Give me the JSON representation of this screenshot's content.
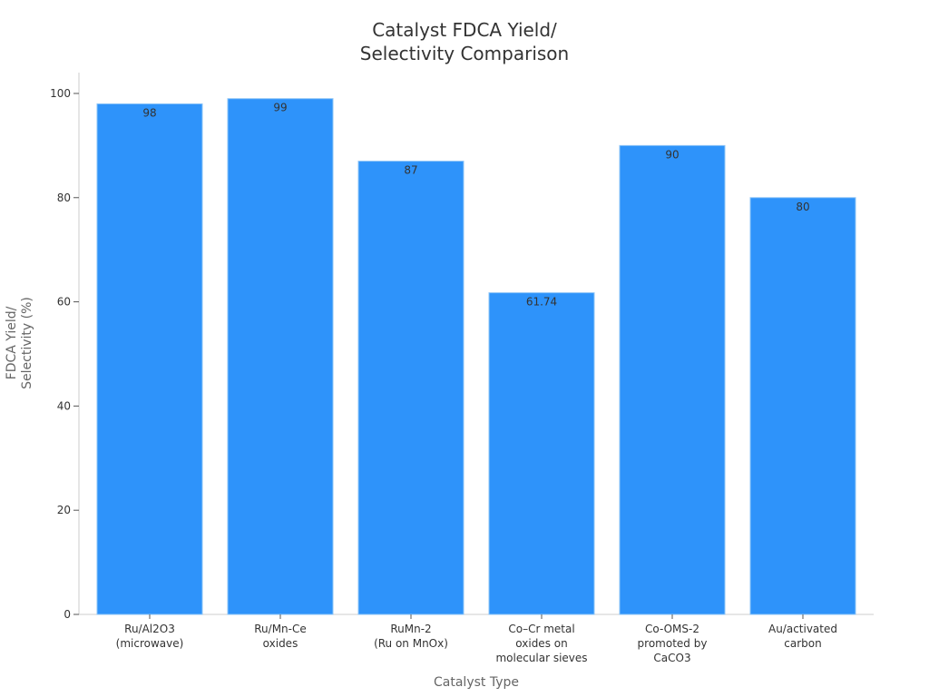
{
  "chart_data": {
    "type": "bar",
    "title": [
      "Catalyst FDCA Yield/",
      "Selectivity Comparison"
    ],
    "xlabel": "Catalyst Type",
    "ylabel": [
      "FDCA Yield/",
      "Selectivity (%)"
    ],
    "categories": [
      [
        "Ru/Al2O3",
        "(microwave)"
      ],
      [
        "Ru/Mn-Ce",
        "oxides"
      ],
      [
        "RuMn-2",
        "(Ru on MnOx)"
      ],
      [
        "Co–Cr metal",
        "oxides on",
        "molecular sieves"
      ],
      [
        "Co-OMS-2",
        "promoted by",
        "CaCO3"
      ],
      [
        "Au/activated",
        "carbon"
      ]
    ],
    "values": [
      98,
      99,
      87,
      61.74,
      90,
      80
    ],
    "data_labels": [
      "98",
      "99",
      "87",
      "61.74",
      "90",
      "80"
    ],
    "yticks": [
      0,
      20,
      40,
      60,
      80,
      100
    ],
    "ylim": [
      0,
      104
    ],
    "grid": false,
    "colors": {
      "bar": "#2e93fa",
      "bar_edge": "#8cc4f7"
    }
  }
}
